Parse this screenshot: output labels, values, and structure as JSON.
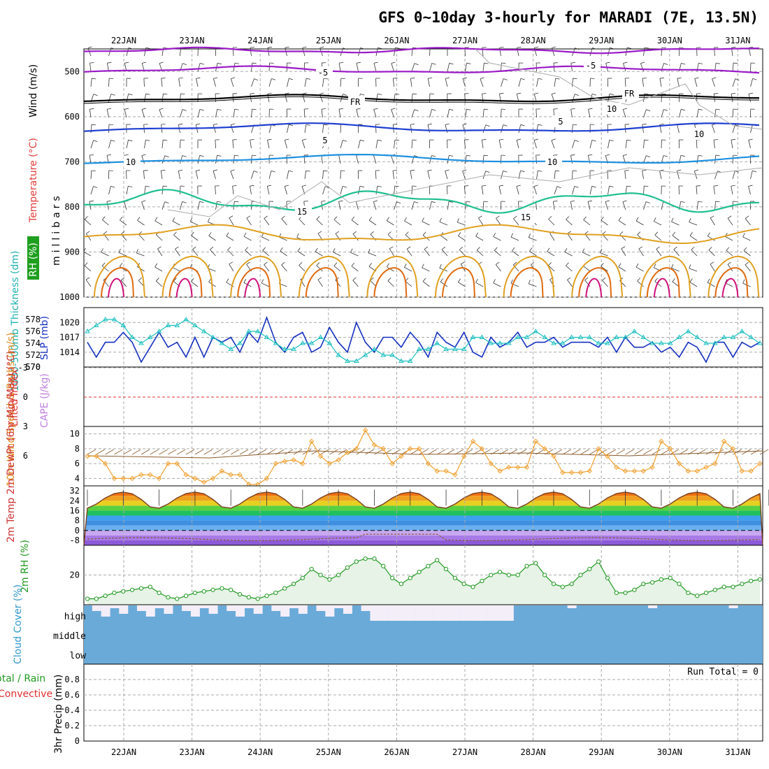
{
  "title": "GFS 0~10day 3-hourly for MARADI (7E, 13.5N)",
  "dates": [
    "22JAN",
    "23JAN",
    "24JAN",
    "25JAN",
    "26JAN",
    "27JAN",
    "28JAN",
    "29JAN",
    "30JAN",
    "31JAN"
  ],
  "colors": {
    "temp_purple": "#9b1bc7",
    "temp_black": "#000000",
    "temp_blue": "#1f3fd0",
    "temp_cyan": "#1e90e0",
    "temp_green": "#1fbf8f",
    "temp_orange": "#e0a020",
    "temp_darkorange": "#e06b10",
    "temp_magenta": "#d0107a",
    "slp": "#1530c0",
    "thickness": "#20c0c0",
    "wind10": "#f0a030",
    "barb": "#8b5a2b",
    "rh": "#229922",
    "rh_fill": "#e6f3e6",
    "cloud": "#6aaad8",
    "grid": "#aaaaaa",
    "lifted": "#e03030"
  },
  "chart_data": [
    {
      "type": "contour",
      "name": "upper-air",
      "ylabel_parts": [
        "RH (%)",
        "Temperature (°C)",
        "Wind (m/s)"
      ],
      "axis_label": "millibars",
      "ylim": [
        1000,
        450
      ],
      "yticks": [
        500,
        600,
        700,
        800,
        900,
        1000
      ],
      "contour_labels": [
        "-5",
        "-5",
        "FR",
        "FR",
        "5",
        "5",
        "10",
        "10",
        "15",
        "15",
        "10",
        "10"
      ]
    },
    {
      "type": "line",
      "name": "thickness-slp",
      "ylabel_left": "1000-500mb Thickness (dm)",
      "ylabel_right": "SLP (mb)",
      "left_ticks": [
        570,
        572,
        574,
        576,
        578
      ],
      "right_ticks": [
        1014,
        1017,
        1020
      ],
      "series": [
        {
          "name": "SLP",
          "axis": "right",
          "values": [
            1016,
            1013,
            1016,
            1016,
            1018,
            1016,
            1012,
            1015,
            1018,
            1015,
            1016,
            1013,
            1017,
            1013,
            1017,
            1016,
            1017,
            1014,
            1018,
            1016,
            1021,
            1016,
            1014,
            1017,
            1018,
            1014,
            1015,
            1019,
            1016,
            1014,
            1020,
            1016,
            1014,
            1017,
            1017,
            1015,
            1018,
            1016,
            1013,
            1018,
            1016,
            1015,
            1018,
            1014,
            1013,
            1017,
            1015,
            1016,
            1018,
            1015,
            1016,
            1016,
            1017,
            1015,
            1016,
            1016,
            1016,
            1015,
            1017,
            1014,
            1017,
            1015,
            1015,
            1016,
            1014,
            1015,
            1013,
            1016,
            1015,
            1012,
            1016,
            1016,
            1013,
            1016,
            1015,
            1016
          ]
        },
        {
          "name": "Thickness",
          "axis": "left",
          "values": [
            576,
            577,
            578,
            578,
            577,
            575,
            574,
            575,
            576,
            577,
            577,
            578,
            577,
            576,
            575,
            574,
            573,
            574,
            576,
            576,
            575,
            574,
            573,
            573,
            574,
            574,
            575,
            574,
            572,
            571,
            571,
            572,
            573,
            572,
            572,
            571,
            571,
            573,
            573,
            574,
            573,
            573,
            573,
            575,
            575,
            574,
            574,
            574,
            575,
            575,
            576,
            575,
            574,
            574,
            575,
            575,
            575,
            574,
            574,
            575,
            575,
            576,
            575,
            574,
            574,
            574,
            575,
            576,
            575,
            574,
            574,
            575,
            575,
            576,
            575,
            574
          ]
        }
      ]
    },
    {
      "type": "line",
      "name": "cape-lifted-index",
      "ylabel_left": "Lifted Index",
      "ylabel_right": "CAPE (J/kg)",
      "yticks": [
        "-3",
        "0",
        "3",
        "6"
      ],
      "lifted_index_zero": 0
    },
    {
      "type": "line",
      "name": "wind10m",
      "ylabel": "10m Wind Speed & Barbs (m/s)",
      "yticks": [
        4,
        6,
        8,
        10
      ],
      "ylim": [
        3,
        11
      ],
      "values": [
        7,
        7,
        6,
        4,
        4,
        4,
        4.5,
        4.5,
        4,
        6,
        6,
        4.5,
        4,
        3.5,
        4,
        5,
        4.5,
        4.5,
        3.2,
        3.2,
        4,
        6,
        6.3,
        6.5,
        6,
        9,
        7,
        6,
        6.5,
        7.5,
        8,
        10.5,
        8.5,
        8,
        6,
        7,
        8,
        8,
        6,
        5,
        5,
        4.5,
        7,
        9,
        8,
        6,
        5,
        5.5,
        5.5,
        5.5,
        9,
        8,
        7,
        4.8,
        4.8,
        4.8,
        5,
        8,
        7,
        5.5,
        5,
        5,
        5,
        5.5,
        9,
        8,
        6,
        5,
        5,
        5.5,
        6,
        9,
        8,
        5,
        5,
        6
      ]
    },
    {
      "type": "area",
      "name": "temp2m",
      "ylabel": "2m Temp 2m DewPt (6hr Min/Max) (°C)",
      "yticks": [
        -8,
        0,
        8,
        16,
        24,
        32
      ],
      "ylim": [
        -12,
        36
      ]
    },
    {
      "type": "area",
      "name": "rh2m",
      "ylabel": "2m RH (%)",
      "yticks": [
        20
      ],
      "ylim": [
        0,
        40
      ],
      "values": [
        4,
        4,
        6,
        8,
        9,
        10,
        11,
        12,
        8,
        5,
        4,
        6,
        8,
        9,
        10,
        11,
        10,
        7,
        5,
        4,
        6,
        8,
        11,
        14,
        18,
        24,
        20,
        17,
        20,
        25,
        29,
        31,
        31,
        26,
        18,
        14,
        18,
        22,
        26,
        30,
        24,
        18,
        14,
        12,
        16,
        20,
        22,
        20,
        20,
        26,
        28,
        20,
        14,
        12,
        14,
        20,
        24,
        29,
        18,
        8,
        8,
        10,
        14,
        15,
        17,
        18,
        14,
        8,
        6,
        8,
        10,
        12,
        12,
        14,
        16,
        17
      ]
    },
    {
      "type": "bar",
      "name": "cloud-cover",
      "ylabel": "Cloud Cover (%)",
      "levels": [
        "high",
        "middle",
        "low"
      ]
    },
    {
      "type": "bar",
      "name": "precip",
      "ylabel": "3hr Precip (mm)",
      "legend": [
        "Total / Rain",
        "Convective"
      ],
      "yticks": [
        "0",
        "0.2",
        "0.4",
        "0.6",
        "0.8"
      ],
      "ylim": [
        0,
        1
      ],
      "run_total": "Run Total = 0"
    }
  ]
}
